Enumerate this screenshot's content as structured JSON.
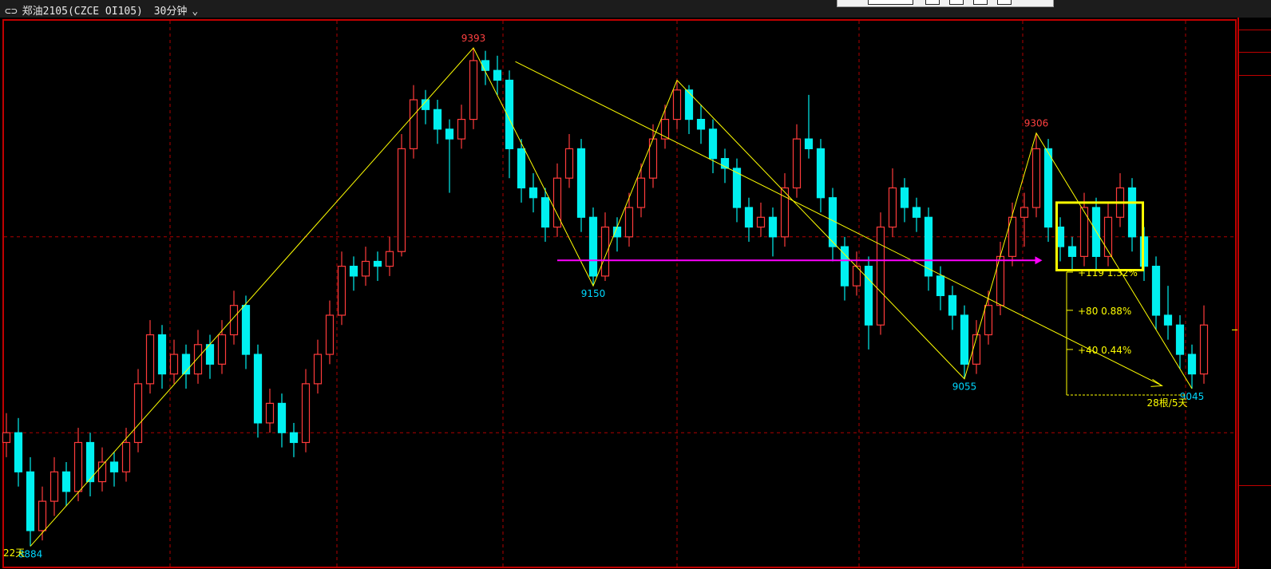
{
  "header": {
    "link_icon": "link-icon",
    "symbol": "郑油2105(CZCE OI105)",
    "period": "30分钟",
    "dropdown_icon": "chevron-down-icon"
  },
  "colors": {
    "up": "#ff3b3b",
    "down": "#00f0f0",
    "grid": "#b00000",
    "annotation": "#ffff00",
    "arrow": "#ff00ff",
    "pivot_high": "#ff4040",
    "pivot_low": "#00d8ff"
  },
  "chart_data": {
    "type": "candlestick",
    "title": "",
    "ylim": [
      8870,
      9421
    ],
    "grid": true,
    "gridlines_price": [
      9200,
      9000
    ],
    "candles": [
      [
        8990,
        9020,
        8975,
        9000
      ],
      [
        9000,
        9015,
        8945,
        8960
      ],
      [
        8960,
        8975,
        8884,
        8900
      ],
      [
        8900,
        8945,
        8890,
        8930
      ],
      [
        8930,
        8975,
        8915,
        8960
      ],
      [
        8960,
        8970,
        8925,
        8940
      ],
      [
        8940,
        9005,
        8930,
        8990
      ],
      [
        8990,
        9000,
        8935,
        8950
      ],
      [
        8950,
        8985,
        8940,
        8970
      ],
      [
        8970,
        8980,
        8945,
        8960
      ],
      [
        8960,
        9005,
        8950,
        8990
      ],
      [
        8990,
        9065,
        8980,
        9050
      ],
      [
        9050,
        9115,
        9040,
        9100
      ],
      [
        9100,
        9110,
        9045,
        9060
      ],
      [
        9060,
        9095,
        9050,
        9080
      ],
      [
        9080,
        9090,
        9045,
        9060
      ],
      [
        9060,
        9105,
        9050,
        9090
      ],
      [
        9090,
        9100,
        9055,
        9070
      ],
      [
        9070,
        9115,
        9060,
        9100
      ],
      [
        9100,
        9145,
        9090,
        9130
      ],
      [
        9130,
        9140,
        9065,
        9080
      ],
      [
        9080,
        9090,
        8995,
        9010
      ],
      [
        9010,
        9045,
        9000,
        9030
      ],
      [
        9030,
        9040,
        8985,
        9000
      ],
      [
        9000,
        9010,
        8975,
        8990
      ],
      [
        8990,
        9065,
        8980,
        9050
      ],
      [
        9050,
        9095,
        9040,
        9080
      ],
      [
        9080,
        9135,
        9070,
        9120
      ],
      [
        9120,
        9185,
        9110,
        9170
      ],
      [
        9170,
        9180,
        9145,
        9160
      ],
      [
        9160,
        9190,
        9150,
        9175
      ],
      [
        9175,
        9185,
        9155,
        9170
      ],
      [
        9170,
        9200,
        9160,
        9185
      ],
      [
        9185,
        9305,
        9180,
        9290
      ],
      [
        9290,
        9355,
        9280,
        9340
      ],
      [
        9340,
        9350,
        9315,
        9330
      ],
      [
        9330,
        9340,
        9295,
        9310
      ],
      [
        9310,
        9320,
        9245,
        9300
      ],
      [
        9300,
        9335,
        9290,
        9320
      ],
      [
        9320,
        9393,
        9310,
        9380
      ],
      [
        9380,
        9390,
        9355,
        9370
      ],
      [
        9370,
        9385,
        9345,
        9360
      ],
      [
        9360,
        9370,
        9260,
        9290
      ],
      [
        9290,
        9300,
        9235,
        9250
      ],
      [
        9250,
        9265,
        9225,
        9240
      ],
      [
        9240,
        9250,
        9195,
        9210
      ],
      [
        9210,
        9275,
        9200,
        9260
      ],
      [
        9260,
        9305,
        9250,
        9290
      ],
      [
        9290,
        9300,
        9205,
        9220
      ],
      [
        9220,
        9230,
        9150,
        9160
      ],
      [
        9160,
        9225,
        9155,
        9210
      ],
      [
        9210,
        9220,
        9185,
        9200
      ],
      [
        9200,
        9245,
        9190,
        9230
      ],
      [
        9230,
        9275,
        9220,
        9260
      ],
      [
        9260,
        9315,
        9250,
        9300
      ],
      [
        9300,
        9335,
        9290,
        9320
      ],
      [
        9320,
        9360,
        9310,
        9350
      ],
      [
        9350,
        9355,
        9305,
        9320
      ],
      [
        9320,
        9335,
        9295,
        9310
      ],
      [
        9310,
        9320,
        9265,
        9280
      ],
      [
        9280,
        9290,
        9255,
        9270
      ],
      [
        9270,
        9280,
        9215,
        9230
      ],
      [
        9230,
        9240,
        9195,
        9210
      ],
      [
        9210,
        9235,
        9200,
        9220
      ],
      [
        9220,
        9230,
        9180,
        9200
      ],
      [
        9200,
        9265,
        9190,
        9250
      ],
      [
        9250,
        9315,
        9240,
        9300
      ],
      [
        9300,
        9345,
        9280,
        9290
      ],
      [
        9290,
        9300,
        9225,
        9240
      ],
      [
        9240,
        9250,
        9175,
        9190
      ],
      [
        9190,
        9200,
        9135,
        9150
      ],
      [
        9150,
        9185,
        9140,
        9170
      ],
      [
        9170,
        9180,
        9085,
        9110
      ],
      [
        9110,
        9225,
        9100,
        9210
      ],
      [
        9210,
        9270,
        9200,
        9250
      ],
      [
        9250,
        9260,
        9215,
        9230
      ],
      [
        9230,
        9240,
        9205,
        9220
      ],
      [
        9220,
        9230,
        9145,
        9160
      ],
      [
        9160,
        9170,
        9125,
        9140
      ],
      [
        9140,
        9150,
        9105,
        9120
      ],
      [
        9120,
        9130,
        9055,
        9070
      ],
      [
        9070,
        9115,
        9060,
        9100
      ],
      [
        9100,
        9145,
        9090,
        9130
      ],
      [
        9130,
        9195,
        9120,
        9180
      ],
      [
        9180,
        9235,
        9170,
        9220
      ],
      [
        9220,
        9245,
        9190,
        9230
      ],
      [
        9230,
        9306,
        9220,
        9290
      ],
      [
        9290,
        9300,
        9195,
        9210
      ],
      [
        9210,
        9220,
        9175,
        9190
      ],
      [
        9190,
        9200,
        9165,
        9180
      ],
      [
        9180,
        9245,
        9170,
        9230
      ],
      [
        9230,
        9240,
        9165,
        9180
      ],
      [
        9180,
        9235,
        9170,
        9220
      ],
      [
        9220,
        9265,
        9210,
        9250
      ],
      [
        9250,
        9260,
        9185,
        9200
      ],
      [
        9200,
        9210,
        9155,
        9170
      ],
      [
        9170,
        9180,
        9105,
        9120
      ],
      [
        9120,
        9150,
        9095,
        9110
      ],
      [
        9110,
        9120,
        9065,
        9080
      ],
      [
        9080,
        9090,
        9045,
        9060
      ],
      [
        9060,
        9130,
        9050,
        9110
      ]
    ],
    "pivots": [
      {
        "index": 2,
        "price": 8884,
        "label": "8884",
        "kind": "low"
      },
      {
        "index": 39,
        "price": 9393,
        "label": "9393",
        "kind": "high"
      },
      {
        "index": 49,
        "price": 9150,
        "label": "9150",
        "kind": "low"
      },
      {
        "index": 56,
        "price": 9360,
        "label": "",
        "kind": "high"
      },
      {
        "index": 80,
        "price": 9055,
        "label": "9055",
        "kind": "low"
      },
      {
        "index": 86,
        "price": 9306,
        "label": "9306",
        "kind": "high"
      },
      {
        "index": 99,
        "price": 9045,
        "label": "9045",
        "kind": "low"
      }
    ],
    "trend_line": {
      "from": [
        42.5,
        9379
      ],
      "to": [
        96.5,
        9048
      ]
    },
    "magenta_arrow": {
      "from_index": 46,
      "to_index": 86.5,
      "price": 9176
    },
    "highlight_box": {
      "from_index": 87.7,
      "to_index": 94.9,
      "top": 9235,
      "bottom": 9166
    },
    "measure": {
      "base_price": 9045,
      "levels": [
        {
          "delta": 119,
          "label": "+119  1.32%"
        },
        {
          "delta": 80,
          "label": "+80  0.88%"
        },
        {
          "delta": 40,
          "label": "+40  0.44%"
        }
      ],
      "span_label": "28根/5天"
    },
    "left_span_label": "22天"
  }
}
